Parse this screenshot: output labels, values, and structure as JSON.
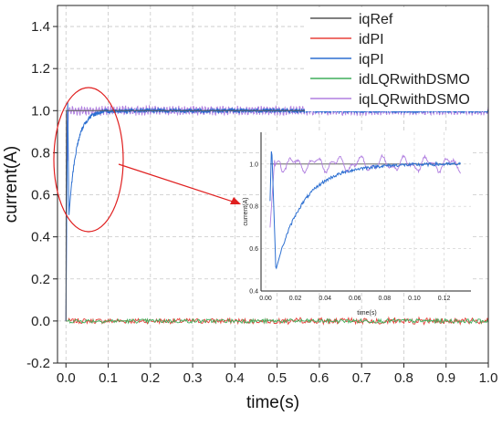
{
  "chart_data": {
    "type": "line",
    "xlabel": "time(s)",
    "ylabel": "current(A)",
    "xlim": [
      -0.02,
      1.0
    ],
    "ylim": [
      -0.2,
      1.5
    ],
    "xticks": [
      "0.0",
      "0.1",
      "0.2",
      "0.3",
      "0.4",
      "0.5",
      "0.6",
      "0.7",
      "0.8",
      "0.9",
      "1.0"
    ],
    "yticks": [
      "-0.2",
      "0.0",
      "0.2",
      "0.4",
      "0.6",
      "0.8",
      "1.0",
      "1.2",
      "1.4"
    ],
    "grid": true,
    "legend_position": "top-right",
    "series": [
      {
        "name": "iqRef",
        "color": "#555555"
      },
      {
        "name": "idPI",
        "color": "#e8403a"
      },
      {
        "name": "iqPI",
        "color": "#2c6fd1"
      },
      {
        "name": "idLQRwithDSMO",
        "color": "#3fae5a"
      },
      {
        "name": "iqLQRwithDSMO",
        "color": "#b07ee0"
      }
    ],
    "inset": {
      "xlabel": "time(s)",
      "ylabel": "current(A)",
      "xlim": [
        0,
        0.135
      ],
      "ylim": [
        0.4,
        1.15
      ],
      "xticks": [
        "0.00",
        "0.02",
        "0.04",
        "0.06",
        "0.08",
        "0.10",
        "0.12"
      ],
      "yticks": [
        "0.4",
        "0.6",
        "0.8",
        "1.0"
      ]
    },
    "annotation": {
      "highlight_region": "ellipse around x 0.0–0.1, y 0.55–1.1",
      "arrow": "points to inset"
    }
  }
}
